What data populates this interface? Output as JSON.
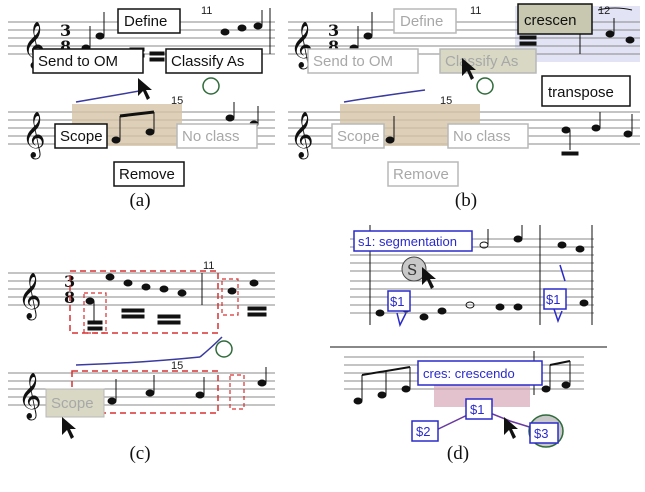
{
  "panels": {
    "a": {
      "caption": "(a)",
      "measure_numbers": [
        "11",
        "15"
      ],
      "menu": {
        "define": "Define",
        "send_to_om": "Send to OM",
        "classify_as": "Classify As",
        "scope": "Scope",
        "no_class": "No class",
        "remove": "Remove"
      },
      "time_signature": {
        "top": "3",
        "bottom": "8"
      }
    },
    "b": {
      "caption": "(b)",
      "measure_numbers": [
        "11",
        "12",
        "15"
      ],
      "menu": {
        "define": "Define",
        "send_to_om": "Send to OM",
        "classify_as": "Classify As",
        "scope": "Scope",
        "no_class": "No class",
        "remove": "Remove",
        "crescen": "crescen",
        "transpose": "transpose"
      },
      "time_signature": {
        "top": "3",
        "bottom": "8"
      }
    },
    "c": {
      "caption": "(c)",
      "measure_numbers": [
        "11",
        "15"
      ],
      "scope_label": "Scope",
      "time_signature": {
        "top": "3",
        "bottom": "8"
      }
    },
    "d": {
      "caption": "(d)",
      "segmentation_label": "s1: segmentation",
      "crescendo_label": "cres: crescendo",
      "tags": [
        "$1",
        "$1",
        "$1",
        "$2",
        "$3"
      ],
      "handwritten": [
        "S",
        "$"
      ]
    }
  },
  "colors": {
    "annotation_blue": "#2a2acc",
    "ink_blue": "#3a3aa0",
    "selection_tan": "#d6c4a6",
    "scope_red": "#d93030",
    "highlight_lavender": "#cfd2ee",
    "crescendo_pink": "#d9a8b8",
    "pen_green": "#2f6b3a"
  }
}
